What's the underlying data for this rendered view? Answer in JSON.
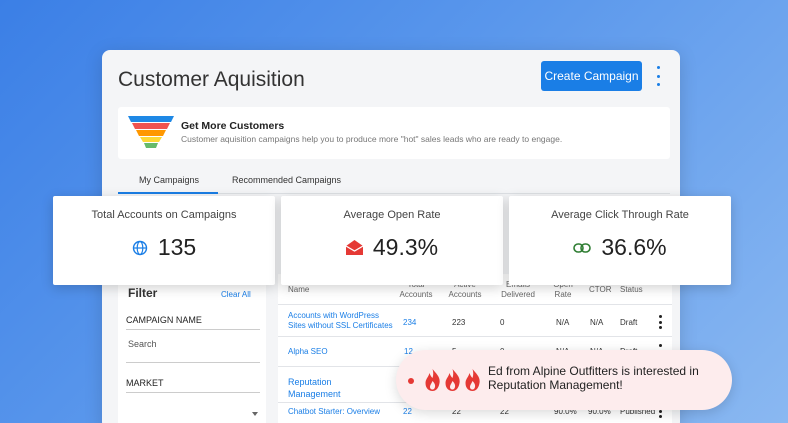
{
  "page": {
    "title": "Customer Aquisition",
    "create_button": "Create Campaign",
    "colors": {
      "accent": "#1a7ee6",
      "alert": "#e53935"
    }
  },
  "banner": {
    "icon": "funnel-icon",
    "title": "Get More Customers",
    "description": "Customer aquisition campaigns help you to produce more \"hot\" sales leads who are ready to engage."
  },
  "tabs": [
    {
      "label": "My Campaigns",
      "active": true
    },
    {
      "label": "Recommended Campaigns",
      "active": false
    }
  ],
  "stats": [
    {
      "label": "Total Accounts on Campaigns",
      "value": "135",
      "icon": "globe-icon"
    },
    {
      "label": "Average Open Rate",
      "value": "49.3%",
      "icon": "envelope-open-icon"
    },
    {
      "label": "Average Click Through Rate",
      "value": "36.6%",
      "icon": "link-icon"
    }
  ],
  "filter": {
    "title": "Filter",
    "clear_all": "Clear All",
    "campaign_name_label": "CAMPAIGN NAME",
    "search_placeholder": "Search",
    "market_label": "MARKET"
  },
  "table": {
    "headers": {
      "name": "Name",
      "total": "Total Accounts",
      "active": "Active Accounts",
      "delivered": "Emails Delivered",
      "open": "Open Rate",
      "ctor": "CTOR",
      "status": "Status"
    },
    "rows": [
      {
        "name": "Accounts with WordPress Sites without SSL Certificates",
        "total": "234",
        "active": "223",
        "delivered": "0",
        "open": "N/A",
        "ctor": "N/A",
        "status": "Draft"
      },
      {
        "name": "Alpha SEO",
        "total": "12",
        "active": "5",
        "delivered": "0",
        "open": "N/A",
        "ctor": "N/A",
        "status": "Draft"
      },
      {
        "name": "Reputation Management",
        "total": "",
        "active": "",
        "delivered": "",
        "open": "",
        "ctor": "",
        "status": ""
      },
      {
        "name": "Chatbot Starter: Overview",
        "total": "22",
        "active": "22",
        "delivered": "22",
        "open": "90.0%",
        "ctor": "90.0%",
        "status": "Published"
      }
    ]
  },
  "toast": {
    "message": "Ed from Alpine Outfitters is interested in Reputation Management!",
    "icon": "flame-icon"
  }
}
